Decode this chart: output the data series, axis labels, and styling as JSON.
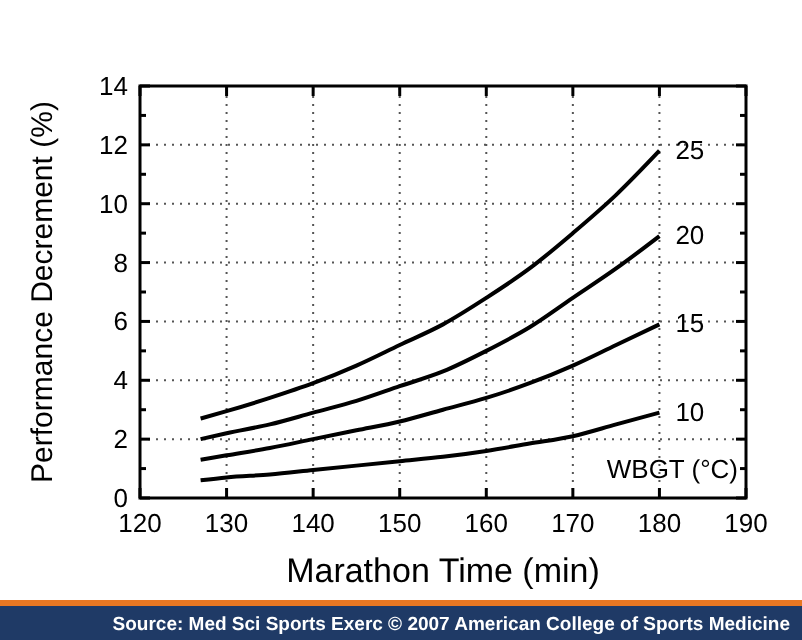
{
  "chart_data": {
    "type": "line",
    "xlabel": "Marathon Time (min)",
    "ylabel": "Performance Decrement (%)",
    "legend_title": "WBGT (°C)",
    "annotations": [
      "Source: Med Sci Sports Exerc © 2007 American College of Sports Medicine"
    ],
    "x": [
      127,
      130,
      135,
      140,
      145,
      150,
      155,
      160,
      165,
      170,
      175,
      180
    ],
    "series": [
      {
        "name": "25",
        "color": "#000000",
        "values": [
          2.7,
          2.95,
          3.4,
          3.9,
          4.5,
          5.2,
          5.9,
          6.8,
          7.8,
          9.0,
          10.3,
          11.8
        ]
      },
      {
        "name": "20",
        "color": "#000000",
        "values": [
          2.0,
          2.2,
          2.5,
          2.9,
          3.3,
          3.8,
          4.3,
          5.0,
          5.8,
          6.8,
          7.8,
          8.9
        ]
      },
      {
        "name": "15",
        "color": "#000000",
        "values": [
          1.3,
          1.45,
          1.7,
          2.0,
          2.3,
          2.6,
          3.0,
          3.4,
          3.9,
          4.5,
          5.2,
          5.9
        ]
      },
      {
        "name": "10",
        "color": "#000000",
        "values": [
          0.6,
          0.7,
          0.8,
          0.95,
          1.1,
          1.25,
          1.4,
          1.6,
          1.85,
          2.1,
          2.5,
          2.9
        ]
      }
    ],
    "xlim": [
      120,
      190
    ],
    "xticks": [
      120,
      130,
      140,
      150,
      160,
      170,
      180,
      190
    ],
    "ylim": [
      0,
      14
    ],
    "yticks": [
      0,
      {
        "value": 1,
        "label": null
      },
      2,
      {
        "value": 3,
        "label": null
      },
      4,
      {
        "value": 5,
        "label": null
      },
      6,
      {
        "value": 7,
        "label": null
      },
      8,
      {
        "value": 9,
        "label": null
      },
      10,
      {
        "value": 11,
        "label": null
      },
      12,
      {
        "value": 13,
        "label": null
      },
      14
    ],
    "grid": true,
    "legend": "right",
    "marker": "none",
    "line_style": "solid"
  }
}
